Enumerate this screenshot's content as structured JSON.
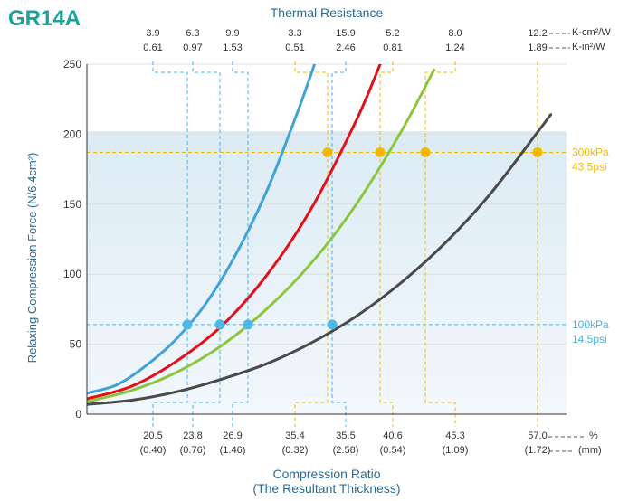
{
  "chart_data": {
    "type": "line",
    "title": "GR14A",
    "top_axis_title": "Thermal Resistance",
    "top_units": [
      "K-cm²/W",
      "K-in²/W"
    ],
    "xlabel": "Compression Ratio",
    "xlabel_sub": "(The Resultant Thickness)",
    "x_units": [
      "%",
      "(mm)"
    ],
    "ylabel": "Relaxing Compression Force (N/6.4cm²)",
    "y_ticks": [
      0,
      50,
      100,
      150,
      200,
      250
    ],
    "ylim": [
      0,
      250
    ],
    "grid": "horizontal",
    "colors": {
      "title": "#1aa39a",
      "axis_title": "#2a6b92",
      "axis_text": "#333333",
      "grid": "#dddddd",
      "band": "#e3f0f8",
      "blue_guide": "#40b4e5",
      "yellow_guide": "#f5b800",
      "marker_blue": "#4db8e8",
      "marker_yellow": "#f5b800"
    },
    "series": [
      {
        "color": "#3fa2d8",
        "values": [
          [
            0,
            15
          ],
          [
            6.7,
            21
          ],
          [
            13.3,
            35
          ],
          [
            20,
            54
          ],
          [
            26.7,
            80
          ],
          [
            33.3,
            115
          ],
          [
            40,
            159
          ],
          [
            46.7,
            214
          ],
          [
            50.7,
            250
          ]
        ]
      },
      {
        "color": "#e3101a",
        "values": [
          [
            0,
            11
          ],
          [
            10,
            20
          ],
          [
            20,
            38
          ],
          [
            30,
            63
          ],
          [
            40,
            99
          ],
          [
            50,
            147
          ],
          [
            60,
            210
          ],
          [
            65.3,
            250
          ]
        ]
      },
      {
        "color": "#8cc63e",
        "values": [
          [
            0,
            9
          ],
          [
            10,
            17
          ],
          [
            20,
            30
          ],
          [
            30,
            49
          ],
          [
            40,
            75
          ],
          [
            50,
            108
          ],
          [
            60,
            150
          ],
          [
            70,
            202
          ],
          [
            77.3,
            246
          ]
        ]
      },
      {
        "color": "#4a4a4a",
        "values": [
          [
            0,
            7
          ],
          [
            10,
            10
          ],
          [
            20,
            16
          ],
          [
            30,
            25
          ],
          [
            40,
            36
          ],
          [
            50,
            51
          ],
          [
            60,
            70
          ],
          [
            70,
            94
          ],
          [
            80,
            123
          ],
          [
            90,
            158
          ],
          [
            100,
            200
          ],
          [
            103.3,
            214
          ]
        ]
      }
    ],
    "pressure_levels": [
      {
        "label_kpa": "300kPa",
        "label_psi": "43.5psi",
        "value": 187
      },
      {
        "label_kpa": "100kPa",
        "label_psi": "14.5psi",
        "value": 64
      }
    ],
    "thermal_points": [
      {
        "level": 100,
        "x_pct": 20.5,
        "x_mm": "(0.40)",
        "r_cm": "3.9",
        "r_in": "0.61"
      },
      {
        "level": 100,
        "x_pct": 23.8,
        "x_mm": "(0.76)",
        "r_cm": "6.3",
        "r_in": "0.97"
      },
      {
        "level": 100,
        "x_pct": 26.9,
        "x_mm": "(1.46)",
        "r_cm": "9.9",
        "r_in": "1.53"
      },
      {
        "level": 300,
        "x_pct": 35.4,
        "x_mm": "(0.32)",
        "r_cm": "3.3",
        "r_in": "0.51"
      },
      {
        "level": 100,
        "x_pct": 35.5,
        "x_mm": "(2.58)",
        "r_cm": "15.9",
        "r_in": "2.46"
      },
      {
        "level": 300,
        "x_pct": 40.6,
        "x_mm": "(0.54)",
        "r_cm": "5.2",
        "r_in": "0.81"
      },
      {
        "level": 300,
        "x_pct": 45.3,
        "x_mm": "(1.09)",
        "r_cm": "8.0",
        "r_in": "1.24"
      },
      {
        "level": 300,
        "x_pct": 57.0,
        "x_mm": "(1.72)",
        "r_cm": "12.2",
        "r_in": "1.89"
      }
    ]
  }
}
